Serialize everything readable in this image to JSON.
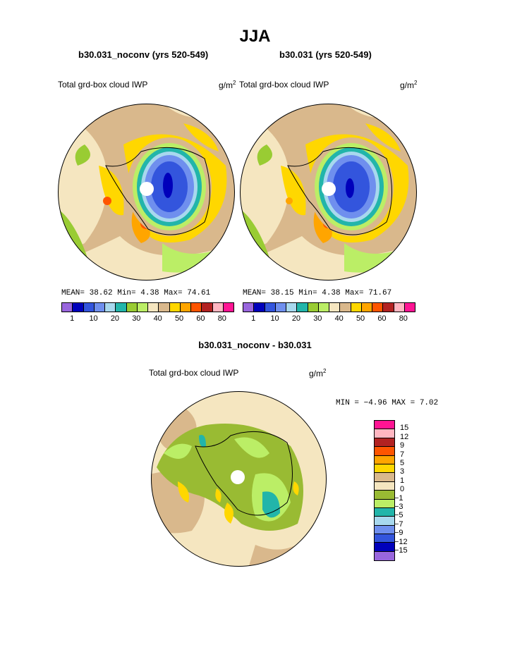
{
  "title": "JJA",
  "panels": [
    {
      "subtitle": "b30.031_noconv (yrs 520-549)",
      "variable": "Total grd-box cloud IWP",
      "unit": "g/m",
      "unit_sup": "2",
      "stats": "MEAN=  38.62  Min=   4.38  Max=  74.61"
    },
    {
      "subtitle": "b30.031 (yrs 520-549)",
      "variable": "Total grd-box cloud IWP",
      "unit": "g/m",
      "unit_sup": "2",
      "stats": "MEAN=  38.15  Min=   4.38  Max=  71.67"
    }
  ],
  "diff": {
    "subtitle": "b30.031_noconv - b30.031",
    "variable": "Total grd-box cloud IWP",
    "unit": "g/m",
    "unit_sup": "2",
    "stats": "MIN =  −4.96  MAX =   7.02"
  },
  "colorbar_top": {
    "colors": [
      "#9966dd",
      "#0000bb",
      "#3355dd",
      "#6f8fee",
      "#a8d8ee",
      "#22b5aa",
      "#99cc33",
      "#bbee66",
      "#f5e6c0",
      "#d9b88c",
      "#ffd700",
      "#ffa500",
      "#ff5500",
      "#b22222",
      "#ffb6c1",
      "#ff1493"
    ],
    "ticks": [
      "1",
      "10",
      "20",
      "30",
      "40",
      "50",
      "60",
      "80"
    ]
  },
  "colorbar_diff": {
    "colors": [
      "#ff1493",
      "#ffb6c1",
      "#b22222",
      "#ff5500",
      "#ffa500",
      "#ffd700",
      "#d9b88c",
      "#f5e6c0",
      "#99bb33",
      "#bbee66",
      "#22b5aa",
      "#a8d8ee",
      "#6f8fee",
      "#3355dd",
      "#0000bb",
      "#9966dd"
    ],
    "labels": [
      "15",
      "12",
      "9",
      "7",
      "5",
      "3",
      "1",
      "0",
      "−1",
      "−3",
      "−5",
      "−7",
      "−9",
      "−12",
      "−15"
    ]
  }
}
